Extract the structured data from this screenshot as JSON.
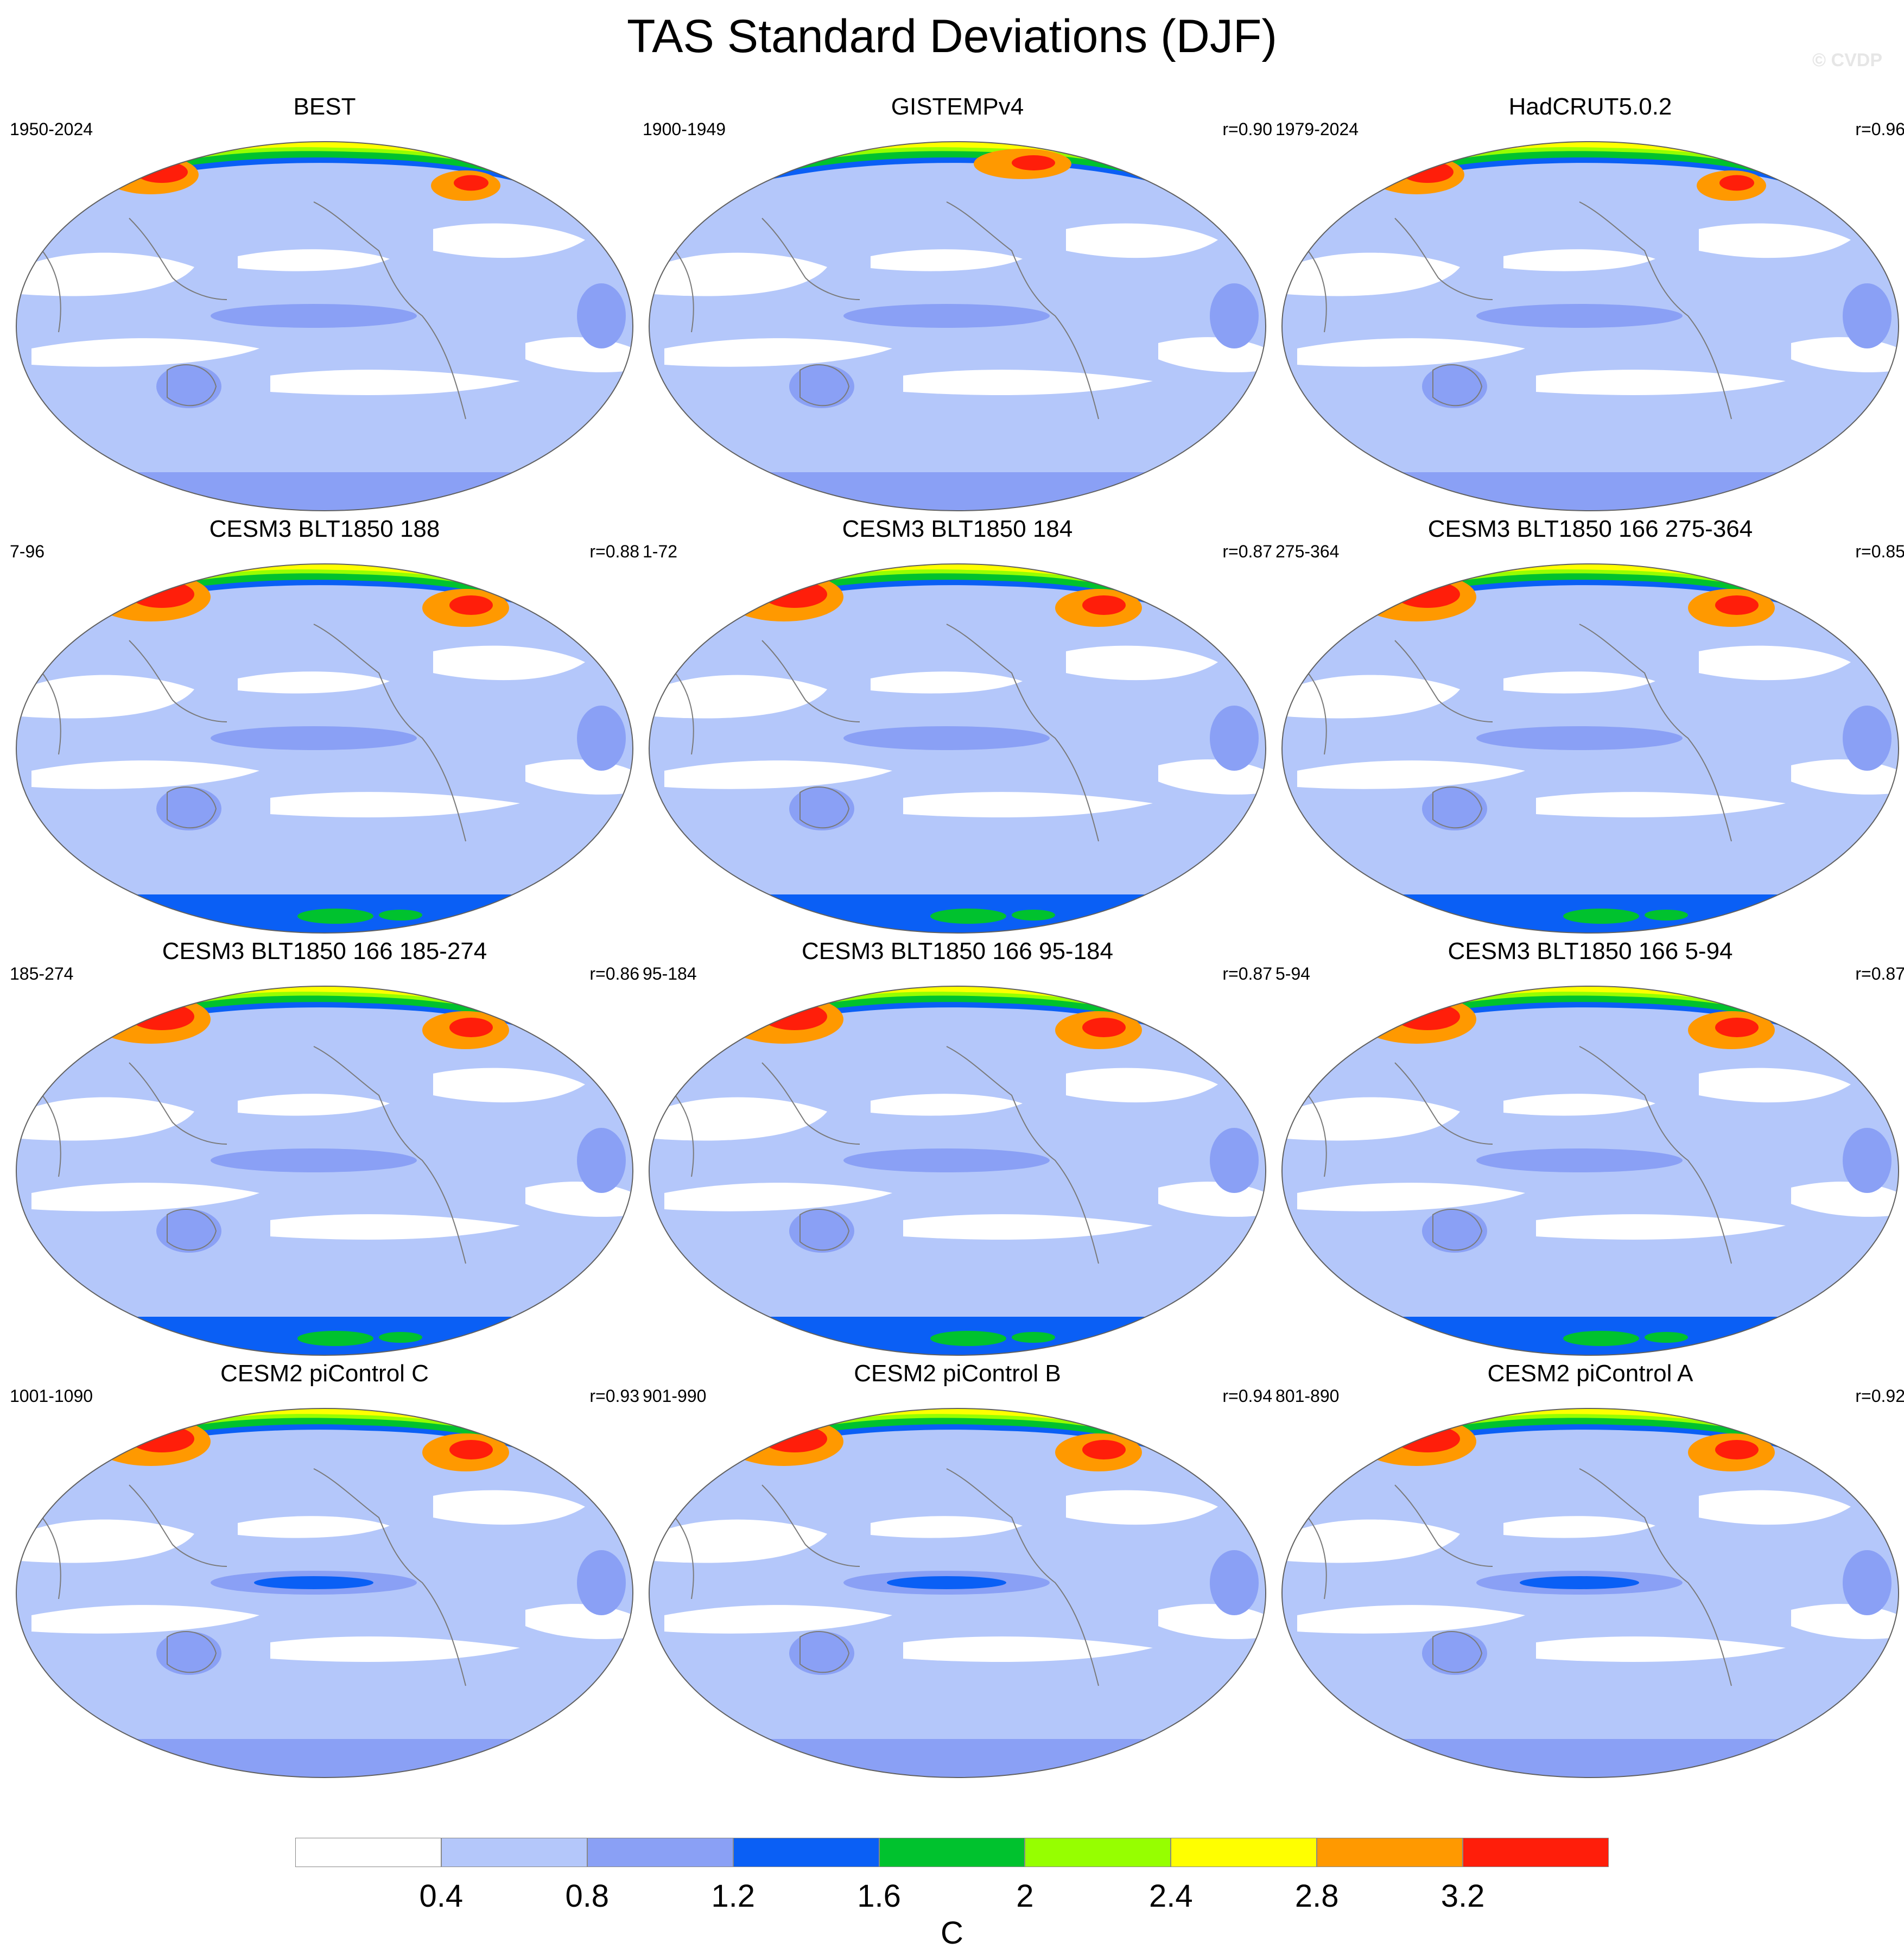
{
  "title": "TAS Standard Deviations (DJF)",
  "credit": "© CVDP",
  "colors": {
    "lt04": "#ffffff",
    "c04_08": "#b4c7fa",
    "c08_12": "#8aa0f5",
    "c12_16": "#0a5ff5",
    "c16_20": "#00c22e",
    "c20_24": "#96ff00",
    "c24_28": "#ffff00",
    "c28_32": "#ff9900",
    "gt32": "#ff1e0a",
    "coast": "#7a7a7a",
    "outline": "#606060"
  },
  "panels": [
    {
      "title": "BEST",
      "period": "1950-2024",
      "corr": ""
    },
    {
      "title": "GISTEMPv4",
      "period": "1900-1949",
      "corr": "r=0.90"
    },
    {
      "title": "HadCRUT5.0.2",
      "period": "1979-2024",
      "corr": "r=0.96"
    },
    {
      "title": "CESM3 BLT1850 188",
      "period": "7-96",
      "corr": "r=0.88"
    },
    {
      "title": "CESM3 BLT1850 184",
      "period": "1-72",
      "corr": "r=0.87"
    },
    {
      "title": "CESM3 BLT1850 166 275-364",
      "period": "275-364",
      "corr": "r=0.85"
    },
    {
      "title": "CESM3 BLT1850 166 185-274",
      "period": "185-274",
      "corr": "r=0.86"
    },
    {
      "title": "CESM3 BLT1850 166 95-184",
      "period": "95-184",
      "corr": "r=0.87"
    },
    {
      "title": "CESM3 BLT1850 166 5-94",
      "period": "5-94",
      "corr": "r=0.87"
    },
    {
      "title": "CESM2 piControl C",
      "period": "1001-1090",
      "corr": "r=0.93"
    },
    {
      "title": "CESM2 piControl B",
      "period": "901-990",
      "corr": "r=0.94"
    },
    {
      "title": "CESM2 piControl A",
      "period": "801-890",
      "corr": "r=0.92"
    }
  ],
  "colorbar": {
    "labels": [
      "0.4",
      "0.8",
      "1.2",
      "1.6",
      "2",
      "2.4",
      "2.8",
      "3.2"
    ],
    "colors": [
      "#ffffff",
      "#b4c7fa",
      "#8aa0f5",
      "#0a5ff5",
      "#00c22e",
      "#96ff00",
      "#ffff00",
      "#ff9900",
      "#ff1e0a"
    ],
    "units": "C"
  }
}
